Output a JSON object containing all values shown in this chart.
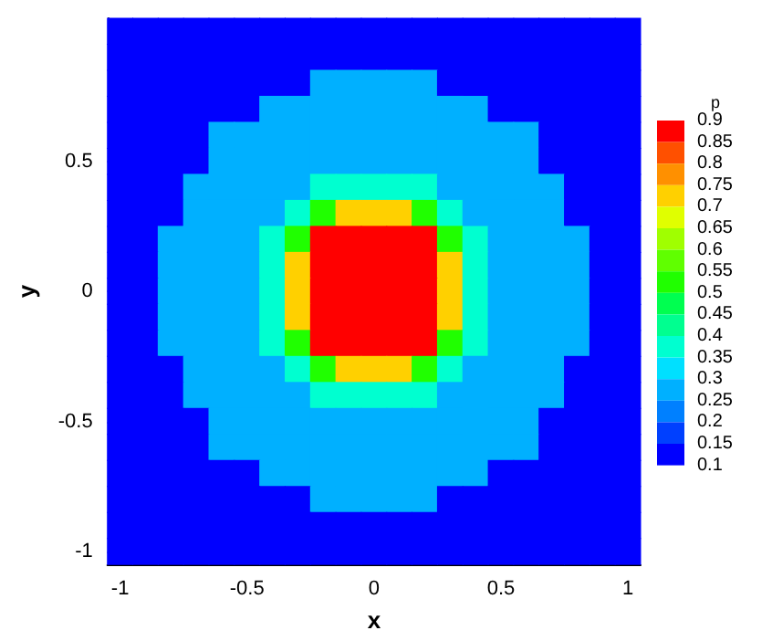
{
  "chart_data": {
    "type": "heatmap",
    "xlabel": "x",
    "ylabel": "y",
    "clabel": "p",
    "categories": [
      "-1",
      null,
      null,
      null,
      null,
      "-0.5",
      null,
      null,
      null,
      null,
      "0",
      null,
      null,
      null,
      null,
      "0.5",
      null,
      null,
      null,
      null,
      "1"
    ],
    "y_categories": [
      null,
      null,
      null,
      null,
      null,
      "0.5",
      null,
      null,
      null,
      null,
      "0",
      null,
      null,
      null,
      null,
      "-0.5",
      null,
      null,
      null,
      null,
      "-1"
    ],
    "cells": [
      [
        0.1,
        0.1,
        0.1,
        0.1,
        0.1,
        0.1,
        0.1,
        0.1,
        0.1,
        0.1,
        0.1,
        0.1,
        0.1,
        0.1,
        0.1,
        0.1,
        0.1,
        0.1,
        0.1,
        0.1,
        0.1
      ],
      [
        0.1,
        0.1,
        0.1,
        0.1,
        0.1,
        0.1,
        0.1,
        0.1,
        0.1,
        0.1,
        0.1,
        0.1,
        0.1,
        0.1,
        0.1,
        0.1,
        0.1,
        0.1,
        0.1,
        0.1,
        0.1
      ],
      [
        0.1,
        0.1,
        0.1,
        0.1,
        0.1,
        0.1,
        0.1,
        0.1,
        0.28,
        0.28,
        0.28,
        0.28,
        0.28,
        0.1,
        0.1,
        0.1,
        0.1,
        0.1,
        0.1,
        0.1,
        0.1
      ],
      [
        0.1,
        0.1,
        0.1,
        0.1,
        0.1,
        0.1,
        0.28,
        0.28,
        0.28,
        0.28,
        0.28,
        0.28,
        0.28,
        0.28,
        0.28,
        0.1,
        0.1,
        0.1,
        0.1,
        0.1,
        0.1
      ],
      [
        0.1,
        0.1,
        0.1,
        0.1,
        0.28,
        0.28,
        0.28,
        0.28,
        0.28,
        0.28,
        0.28,
        0.28,
        0.28,
        0.28,
        0.28,
        0.28,
        0.28,
        0.1,
        0.1,
        0.1,
        0.1
      ],
      [
        0.1,
        0.1,
        0.1,
        0.1,
        0.28,
        0.28,
        0.28,
        0.28,
        0.28,
        0.28,
        0.28,
        0.28,
        0.28,
        0.28,
        0.28,
        0.28,
        0.28,
        0.1,
        0.1,
        0.1,
        0.1
      ],
      [
        0.1,
        0.1,
        0.1,
        0.28,
        0.28,
        0.28,
        0.28,
        0.28,
        0.35,
        0.35,
        0.35,
        0.35,
        0.35,
        0.28,
        0.28,
        0.28,
        0.28,
        0.28,
        0.1,
        0.1,
        0.1
      ],
      [
        0.1,
        0.1,
        0.1,
        0.28,
        0.28,
        0.28,
        0.28,
        0.35,
        0.5,
        0.7,
        0.7,
        0.7,
        0.5,
        0.35,
        0.28,
        0.28,
        0.28,
        0.28,
        0.1,
        0.1,
        0.1
      ],
      [
        0.1,
        0.1,
        0.28,
        0.28,
        0.28,
        0.28,
        0.35,
        0.5,
        0.9,
        0.9,
        0.9,
        0.9,
        0.9,
        0.5,
        0.35,
        0.28,
        0.28,
        0.28,
        0.28,
        0.1,
        0.1
      ],
      [
        0.1,
        0.1,
        0.28,
        0.28,
        0.28,
        0.28,
        0.35,
        0.7,
        0.9,
        0.9,
        0.9,
        0.9,
        0.9,
        0.7,
        0.35,
        0.28,
        0.28,
        0.28,
        0.28,
        0.1,
        0.1
      ],
      [
        0.1,
        0.1,
        0.28,
        0.28,
        0.28,
        0.28,
        0.35,
        0.7,
        0.9,
        0.9,
        0.9,
        0.9,
        0.9,
        0.7,
        0.35,
        0.28,
        0.28,
        0.28,
        0.28,
        0.1,
        0.1
      ],
      [
        0.1,
        0.1,
        0.28,
        0.28,
        0.28,
        0.28,
        0.35,
        0.7,
        0.9,
        0.9,
        0.9,
        0.9,
        0.9,
        0.7,
        0.35,
        0.28,
        0.28,
        0.28,
        0.28,
        0.1,
        0.1
      ],
      [
        0.1,
        0.1,
        0.28,
        0.28,
        0.28,
        0.28,
        0.35,
        0.5,
        0.9,
        0.9,
        0.9,
        0.9,
        0.9,
        0.5,
        0.35,
        0.28,
        0.28,
        0.28,
        0.28,
        0.1,
        0.1
      ],
      [
        0.1,
        0.1,
        0.1,
        0.28,
        0.28,
        0.28,
        0.28,
        0.35,
        0.5,
        0.7,
        0.7,
        0.7,
        0.5,
        0.35,
        0.28,
        0.28,
        0.28,
        0.28,
        0.1,
        0.1,
        0.1
      ],
      [
        0.1,
        0.1,
        0.1,
        0.28,
        0.28,
        0.28,
        0.28,
        0.28,
        0.35,
        0.35,
        0.35,
        0.35,
        0.35,
        0.28,
        0.28,
        0.28,
        0.28,
        0.28,
        0.1,
        0.1,
        0.1
      ],
      [
        0.1,
        0.1,
        0.1,
        0.1,
        0.28,
        0.28,
        0.28,
        0.28,
        0.28,
        0.28,
        0.28,
        0.28,
        0.28,
        0.28,
        0.28,
        0.28,
        0.28,
        0.1,
        0.1,
        0.1,
        0.1
      ],
      [
        0.1,
        0.1,
        0.1,
        0.1,
        0.28,
        0.28,
        0.28,
        0.28,
        0.28,
        0.28,
        0.28,
        0.28,
        0.28,
        0.28,
        0.28,
        0.28,
        0.28,
        0.1,
        0.1,
        0.1,
        0.1
      ],
      [
        0.1,
        0.1,
        0.1,
        0.1,
        0.1,
        0.1,
        0.28,
        0.28,
        0.28,
        0.28,
        0.28,
        0.28,
        0.28,
        0.28,
        0.28,
        0.1,
        0.1,
        0.1,
        0.1,
        0.1,
        0.1
      ],
      [
        0.1,
        0.1,
        0.1,
        0.1,
        0.1,
        0.1,
        0.1,
        0.1,
        0.28,
        0.28,
        0.28,
        0.28,
        0.28,
        0.1,
        0.1,
        0.1,
        0.1,
        0.1,
        0.1,
        0.1,
        0.1
      ],
      [
        0.1,
        0.1,
        0.1,
        0.1,
        0.1,
        0.1,
        0.1,
        0.1,
        0.1,
        0.1,
        0.1,
        0.1,
        0.1,
        0.1,
        0.1,
        0.1,
        0.1,
        0.1,
        0.1,
        0.1,
        0.1
      ],
      [
        0.1,
        0.1,
        0.1,
        0.1,
        0.1,
        0.1,
        0.1,
        0.1,
        0.1,
        0.1,
        0.1,
        0.1,
        0.1,
        0.1,
        0.1,
        0.1,
        0.1,
        0.1,
        0.1,
        0.1,
        0.1
      ]
    ],
    "clim": [
      0.1,
      0.9
    ],
    "cticks": [
      0.1,
      0.15,
      0.2,
      0.25,
      0.3,
      0.35,
      0.4,
      0.45,
      0.5,
      0.55,
      0.6,
      0.65,
      0.7,
      0.75,
      0.8,
      0.85,
      0.9
    ]
  }
}
